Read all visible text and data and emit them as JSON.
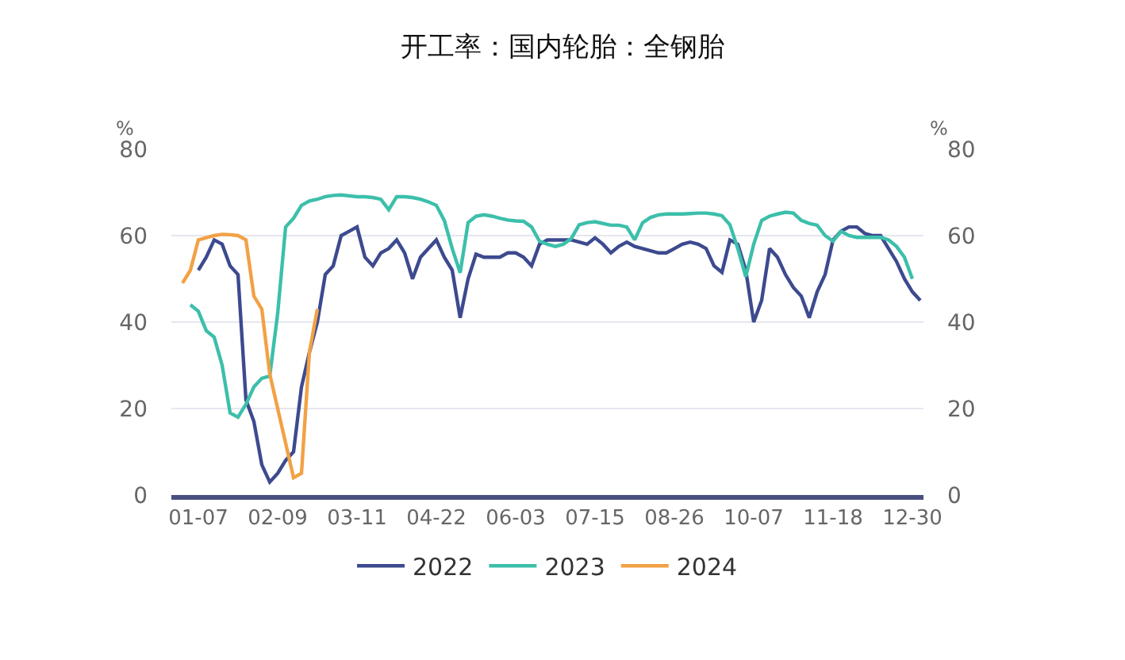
{
  "chart_data": {
    "type": "line",
    "title": "开工率：国内轮胎：全钢胎",
    "ylabel": "%",
    "y2label": "%",
    "categories": [
      null,
      null,
      "01-07",
      null,
      null,
      null,
      null,
      null,
      null,
      null,
      null,
      null,
      "02-09",
      null,
      null,
      null,
      null,
      null,
      null,
      null,
      null,
      null,
      "03-11",
      null,
      null,
      null,
      null,
      null,
      null,
      null,
      null,
      null,
      "04-22",
      null,
      null,
      null,
      null,
      null,
      null,
      null,
      null,
      null,
      "06-03",
      null,
      null,
      null,
      null,
      null,
      null,
      null,
      null,
      null,
      "07-15",
      null,
      null,
      null,
      null,
      null,
      null,
      null,
      null,
      null,
      "08-26",
      null,
      null,
      null,
      null,
      null,
      null,
      null,
      null,
      null,
      "10-07",
      null,
      null,
      null,
      null,
      null,
      null,
      null,
      null,
      null,
      "11-18",
      null,
      null,
      null,
      null,
      null,
      null,
      null,
      null,
      null,
      "12-30",
      null
    ],
    "series": [
      {
        "name": "2022",
        "color": "#3d4a8f",
        "values": [
          null,
          null,
          52,
          55,
          59,
          58,
          53,
          51,
          22,
          17,
          7,
          3,
          5,
          8,
          10,
          25,
          33,
          40,
          51,
          53,
          60,
          61,
          62,
          55,
          53,
          56,
          57,
          59,
          56,
          50,
          55,
          57,
          59,
          55,
          52,
          41,
          50,
          55.7,
          55,
          55,
          55,
          56,
          56,
          55,
          53,
          58,
          59,
          59,
          59,
          59,
          58.5,
          58,
          59.5,
          58,
          56,
          57.5,
          58.5,
          57.5,
          57,
          56.5,
          56,
          56,
          57,
          58,
          58.5,
          58,
          57,
          53,
          51.5,
          59,
          58,
          52,
          40,
          45,
          57,
          55,
          51,
          48,
          46,
          41,
          47,
          51,
          59,
          61,
          62,
          62,
          60.5,
          60,
          60,
          57,
          54,
          50,
          47,
          45
        ]
      },
      {
        "name": "2023",
        "color": "#3cbfaa",
        "values": [
          null,
          44,
          42.5,
          38,
          36.5,
          30,
          19,
          18,
          21,
          25,
          27,
          27.5,
          42,
          62,
          64,
          67,
          68,
          68.4,
          69,
          69.3,
          69.4,
          69.2,
          69,
          69,
          68.8,
          68.4,
          66,
          69,
          69,
          68.8,
          68.4,
          67.8,
          67,
          63.5,
          57,
          51.4,
          63,
          64.5,
          64.8,
          64.5,
          64,
          63.6,
          63.4,
          63.3,
          62,
          58.7,
          58,
          57.5,
          58,
          59.3,
          62.5,
          63,
          63.2,
          62.8,
          62.4,
          62.4,
          62,
          59,
          63,
          64.2,
          64.8,
          65,
          65,
          65,
          65.1,
          65.2,
          65.2,
          65,
          64.6,
          62.5,
          57,
          50.5,
          58,
          63.5,
          64.5,
          65,
          65.4,
          65.2,
          63.5,
          62.8,
          62.4,
          60,
          58.7,
          61,
          60,
          59.6,
          59.6,
          59.6,
          59.6,
          59,
          57.5,
          55,
          50,
          null
        ]
      },
      {
        "name": "2024",
        "color": "#f2a145",
        "values": [
          49,
          52,
          59,
          59.5,
          60,
          60.3,
          60.2,
          60,
          59,
          46,
          43,
          28,
          20,
          12,
          4,
          5,
          33,
          43,
          null,
          null,
          null,
          null,
          null,
          null,
          null,
          null,
          null,
          null,
          null,
          null,
          null,
          null,
          null,
          null,
          null,
          null,
          null,
          null,
          null,
          null,
          null,
          null,
          null,
          null,
          null,
          null,
          null,
          null,
          null,
          null,
          null,
          null,
          null,
          null,
          null,
          null,
          null,
          null,
          null,
          null,
          null,
          null,
          null,
          null,
          null,
          null,
          null,
          null,
          null,
          null,
          null,
          null,
          null,
          null,
          null,
          null,
          null,
          null,
          null,
          null,
          null,
          null,
          null,
          null,
          null,
          null,
          null,
          null,
          null,
          null,
          null,
          null,
          null,
          null
        ]
      }
    ],
    "ylim": [
      0,
      80
    ],
    "yticks": [
      0,
      20,
      40,
      60,
      80
    ],
    "y2lim": [
      0,
      80
    ],
    "y2ticks": [
      0,
      20,
      40,
      60,
      80
    ],
    "grid": "y",
    "legend": "bottom",
    "marker": "none",
    "line_style": "solid"
  }
}
